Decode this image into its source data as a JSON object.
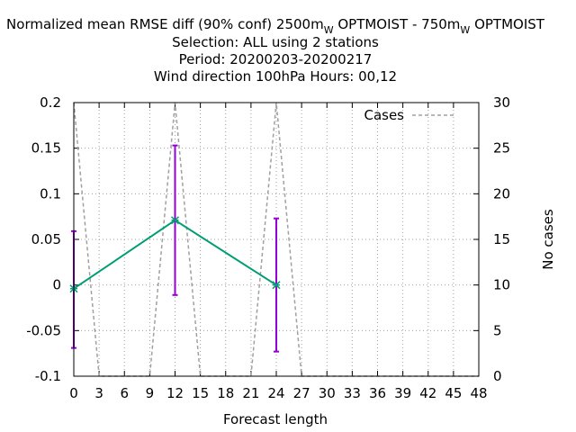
{
  "header": {
    "line1_a": "Normalized mean RMSE diff (90% conf) 2500m",
    "line1_sub1": "W",
    "line1_b": " OPTMOIST - 750m",
    "line1_sub2": "W",
    "line1_c": " OPTMOIST",
    "line2": "Selection: ALL using     2 stations",
    "line3": "Period: 20200203-20200217",
    "line4": "Wind direction 100hPa   Hours:  00,12"
  },
  "chart_data": {
    "type": "line",
    "xlabel": "Forecast length",
    "ylabel": "",
    "y2label": "No cases",
    "xlim": [
      0,
      48
    ],
    "ylim": [
      -0.1,
      0.2
    ],
    "y2lim": [
      0,
      30
    ],
    "x_ticks": [
      "0",
      "3",
      "6",
      "9",
      "12",
      "15",
      "18",
      "21",
      "24",
      "27",
      "30",
      "33",
      "36",
      "39",
      "42",
      "45",
      "48"
    ],
    "y_ticks": [
      "-0.1",
      "-0.05",
      "0",
      "0.05",
      "0.1",
      "0.15",
      "0.2"
    ],
    "y2_ticks": [
      "0",
      "5",
      "10",
      "15",
      "20",
      "25",
      "30"
    ],
    "grid": true,
    "legend_position": "top-right",
    "series": [
      {
        "name": "",
        "axis": "y",
        "color": "#009e73",
        "x": [
          0,
          12,
          24
        ],
        "values": [
          -0.004,
          0.071,
          0.0
        ],
        "error_low": [
          -0.069,
          -0.011,
          -0.073
        ],
        "error_high": [
          0.059,
          0.153,
          0.073
        ],
        "error_color": "#9400d3"
      },
      {
        "name": "Cases",
        "axis": "y2",
        "color": "#a0a0a0",
        "style": "dashed",
        "x": [
          0,
          3,
          9,
          12,
          15,
          21,
          24,
          27,
          48
        ],
        "values": [
          30,
          0,
          0,
          30,
          0,
          0,
          30,
          0,
          0
        ]
      }
    ]
  }
}
